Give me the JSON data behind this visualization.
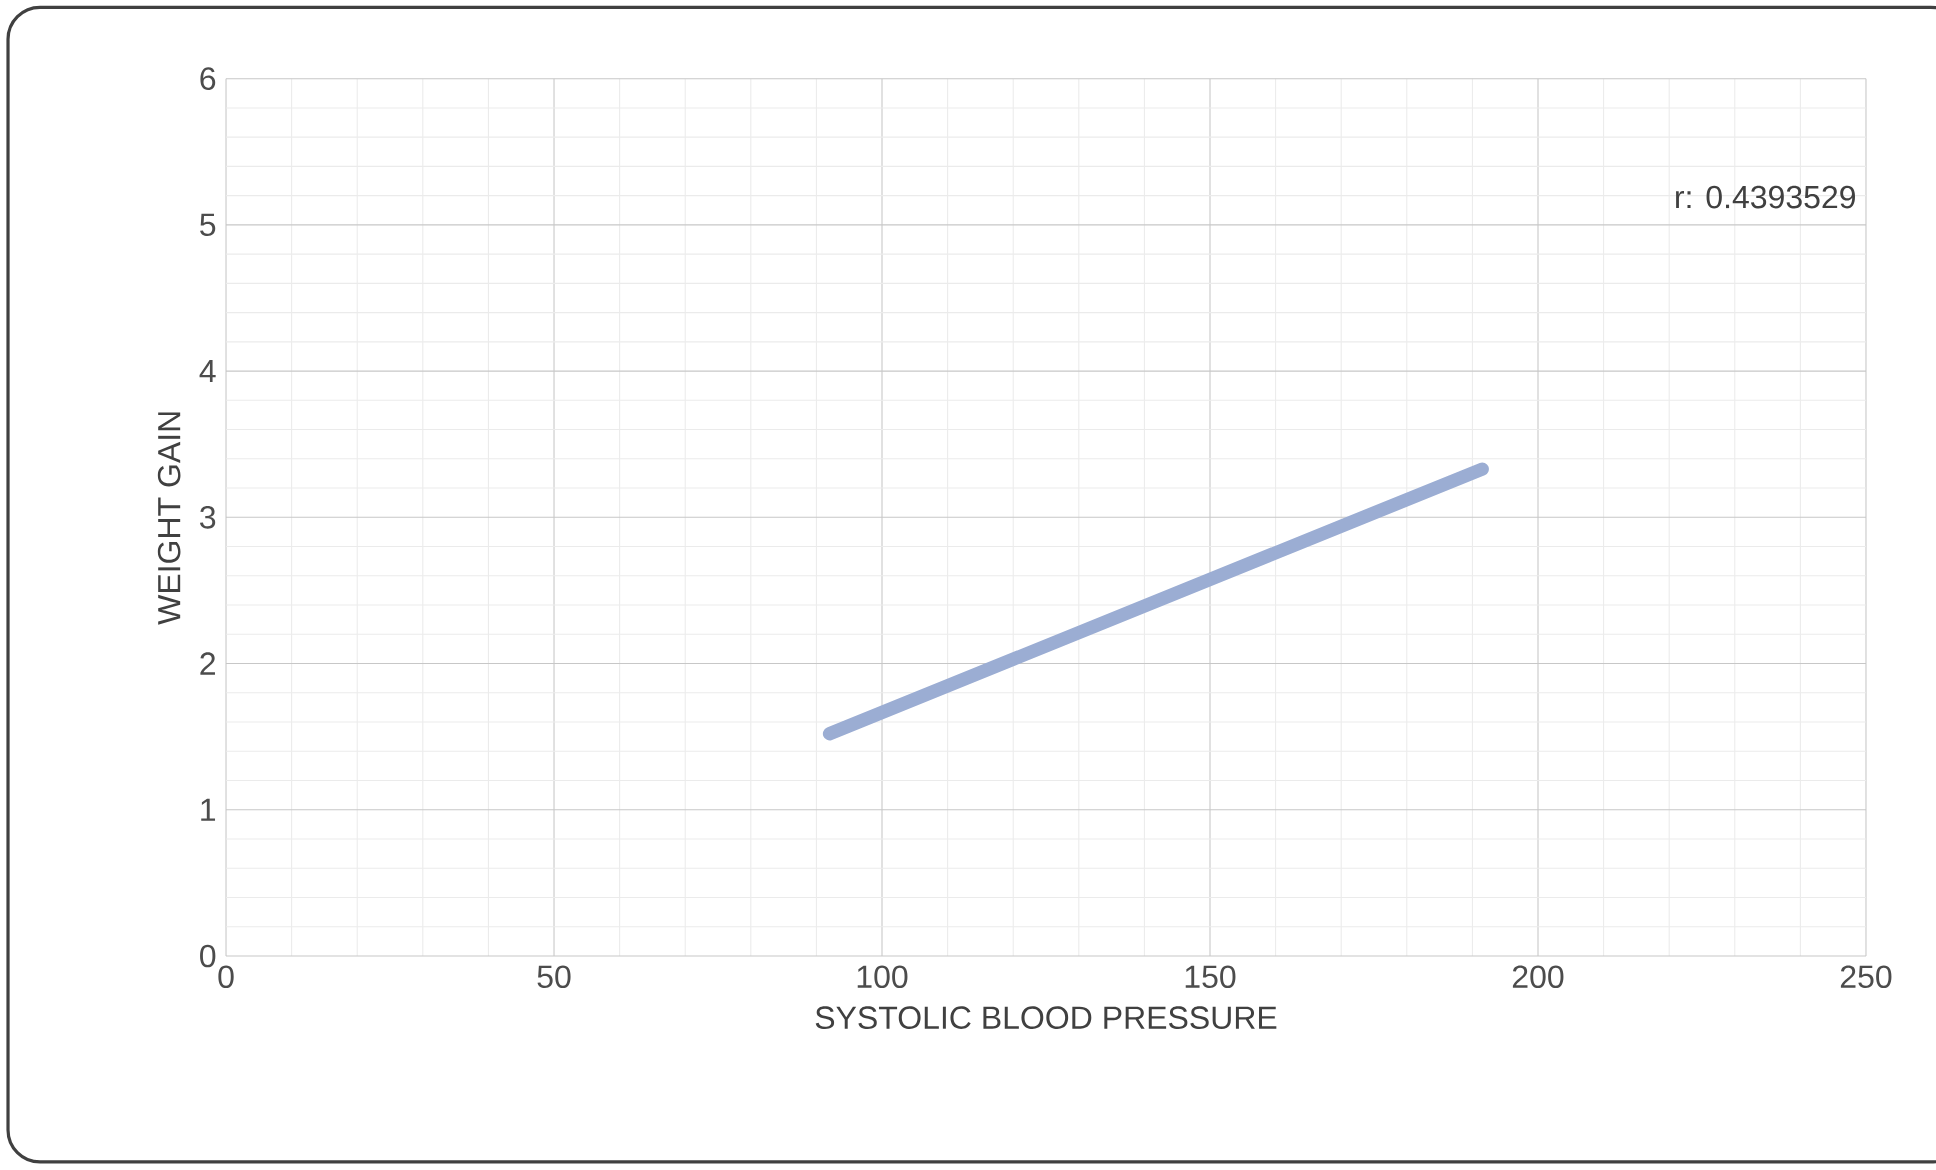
{
  "chart_data": {
    "type": "line",
    "xlabel": "SYSTOLIC BLOOD PRESSURE",
    "ylabel": "WEIGHT GAIN",
    "x": [
      92,
      191.5
    ],
    "series": [
      {
        "color": "#9badd3",
        "values": [
          1.52,
          3.33
        ]
      }
    ],
    "xlim": [
      0,
      250
    ],
    "ylim": [
      0,
      6
    ],
    "xticks": [
      0,
      50,
      100,
      150,
      200,
      250
    ],
    "yticks": [
      0,
      1,
      2,
      3,
      4,
      5,
      6
    ],
    "grid": true,
    "marker": "none",
    "line_style": "solid",
    "annotations": [
      "r: 0.4393529"
    ]
  }
}
